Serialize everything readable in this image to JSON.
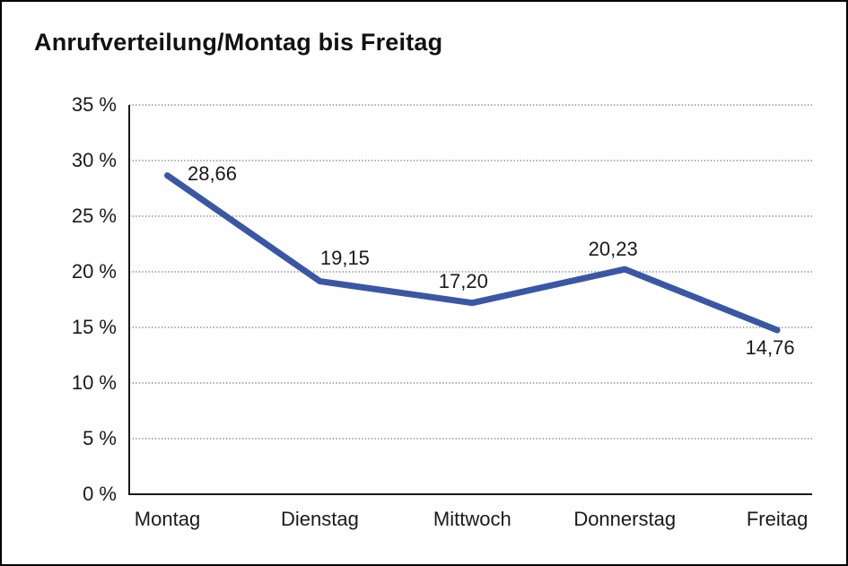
{
  "title": "Anrufverteilung/Montag bis Freitag",
  "colors": {
    "line": "#3A57A6",
    "grid": "#6e6e6e",
    "axis": "#1a1a1a",
    "text": "#1a1a1a",
    "background": "#ffffff"
  },
  "chart_data": {
    "type": "line",
    "title": "Anrufverteilung/Montag bis Freitag",
    "categories": [
      "Montag",
      "Dienstag",
      "Mittwoch",
      "Donnerstag",
      "Freitag"
    ],
    "values": [
      28.66,
      19.15,
      17.2,
      20.23,
      14.76
    ],
    "point_labels": [
      "28,66",
      "19,15",
      "17,20",
      "20,23",
      "14,76"
    ],
    "xlabel": "",
    "ylabel": "",
    "ylim": [
      0,
      35
    ],
    "ytick_step": 5,
    "ytick_labels": [
      "0 %",
      "5 %",
      "10 %",
      "15 %",
      "20 %",
      "25 %",
      "30 %",
      "35 %"
    ],
    "grid": "horizontal-dotted",
    "legend": "none"
  }
}
